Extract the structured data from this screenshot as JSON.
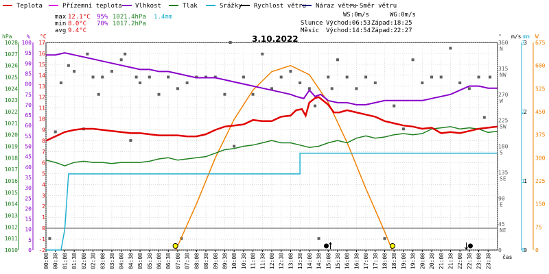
{
  "legend": [
    {
      "label": "Teplota",
      "color": "#e00000"
    },
    {
      "label": "Přízemní teplota",
      "color": "#e000e0"
    },
    {
      "label": "Vlhkost",
      "color": "#8800c8"
    },
    {
      "label": "Tlak",
      "color": "#208020"
    },
    {
      "label": "Srážky",
      "color": "#20b0d0"
    },
    {
      "label": "Rychlost větru",
      "color": "#000000"
    },
    {
      "label": "Náraz větru",
      "color": "#000080"
    },
    {
      "label": "Směr větru",
      "color": "#808080"
    }
  ],
  "stats": {
    "max": {
      "label": "max",
      "temp": "12.1°C",
      "hum": "95%",
      "press": "1021.4hPa",
      "rain": "1.4mm"
    },
    "min": {
      "label": "min",
      "temp": "8.0°C",
      "hum": "70%",
      "press": "1017.2hPa"
    },
    "avg": {
      "label": "avg",
      "temp": "9.4°C"
    }
  },
  "wind": {
    "ws": "WS:0m/s",
    "wg": "WG:0m/s"
  },
  "sun": {
    "label": "Slunce",
    "rise": "Východ:06:53",
    "set": "Západ:18:25"
  },
  "moon": {
    "label": "Měsíc",
    "rise": "Východ:14:54",
    "set": "Západ:22:27"
  },
  "date": "3.10.2022",
  "time_label": "čas",
  "units": {
    "hpa": "hPa",
    "pct": "%",
    "degc": "°C",
    "deg": "°",
    "ms": "m/s",
    "mm": "mm",
    "w": "W"
  },
  "colors": {
    "temp": "#e00000",
    "hum": "#8800c8",
    "press": "#208020",
    "rain": "#20b0d0",
    "dir": "#606060",
    "sun": "#f08000",
    "grid": "#c8c8c8",
    "zero": "#808080"
  },
  "axes": {
    "hpa": [
      "1010",
      "1011",
      "1012",
      "1013",
      "1014",
      "1015",
      "1016",
      "1017",
      "1018",
      "1019",
      "1020",
      "1021",
      "1022",
      "1023",
      "1024",
      "1025",
      "1026",
      "1027",
      "1028"
    ],
    "pct": [
      "0",
      "5",
      "10",
      "15",
      "20",
      "25",
      "30",
      "35",
      "40",
      "45",
      "50",
      "55",
      "60",
      "65",
      "70",
      "75",
      "80",
      "85",
      "90",
      "95",
      "100"
    ],
    "degc": [
      "-2",
      "-1",
      "0",
      "1",
      "2",
      "3",
      "4",
      "5",
      "6",
      "7",
      "8",
      "9",
      "10",
      "11",
      "12",
      "13",
      "14",
      "15",
      "16",
      "17"
    ],
    "dir": [
      {
        "deg": "360",
        "card": "N"
      },
      {
        "deg": "315",
        "card": "NW"
      },
      {
        "deg": "270",
        "card": "W"
      },
      {
        "deg": "225",
        "card": "SW"
      },
      {
        "deg": "180",
        "card": "S"
      },
      {
        "deg": "135",
        "card": "SE"
      },
      {
        "deg": "90",
        "card": "E"
      },
      {
        "deg": "45",
        "card": "NE"
      },
      {
        "deg": "0",
        "card": ""
      }
    ],
    "ms": [
      {
        "v": "0"
      },
      {
        "v": "1"
      },
      {
        "v": "2"
      },
      {
        "v": "3"
      }
    ],
    "mm": [
      {
        "v": "0"
      },
      {
        "v": "1"
      },
      {
        "v": "2"
      },
      {
        "v": "3"
      }
    ],
    "w": [
      "0",
      "75",
      "150",
      "225",
      "300",
      "375",
      "450",
      "525",
      "600",
      "675"
    ],
    "time": [
      "00:00",
      "00:30",
      "01:00",
      "01:30",
      "02:00",
      "02:30",
      "03:00",
      "03:30",
      "04:00",
      "04:30",
      "05:00",
      "05:30",
      "06:00",
      "06:30",
      "07:00",
      "07:30",
      "08:00",
      "08:30",
      "09:00",
      "09:30",
      "10:00",
      "10:30",
      "11:00",
      "11:30",
      "12:00",
      "12:30",
      "13:00",
      "13:30",
      "14:00",
      "14:30",
      "15:00",
      "15:30",
      "16:00",
      "16:30",
      "17:00",
      "17:30",
      "18:00",
      "18:30",
      "19:00",
      "19:30",
      "20:00",
      "20:30",
      "21:00",
      "21:30",
      "22:00",
      "22:30",
      "23:00",
      "23:30"
    ]
  },
  "chart_data": {
    "type": "line",
    "x_unit": "hours",
    "ranges": {
      "temp": [
        -2,
        17
      ],
      "hum": [
        0,
        100
      ],
      "press": [
        1010,
        1028
      ],
      "rain": [
        0,
        3
      ],
      "sun": [
        0,
        675
      ],
      "dir": [
        0,
        360
      ]
    },
    "series": [
      {
        "name": "Teplota",
        "unit": "°C",
        "points": [
          [
            0,
            8.0
          ],
          [
            0.5,
            8.4
          ],
          [
            1,
            8.8
          ],
          [
            1.5,
            9.0
          ],
          [
            2,
            9.1
          ],
          [
            2.5,
            9.1
          ],
          [
            3,
            9.0
          ],
          [
            3.5,
            8.9
          ],
          [
            4,
            8.8
          ],
          [
            4.5,
            8.7
          ],
          [
            5,
            8.7
          ],
          [
            5.5,
            8.6
          ],
          [
            6,
            8.5
          ],
          [
            6.5,
            8.5
          ],
          [
            7,
            8.5
          ],
          [
            7.5,
            8.4
          ],
          [
            8,
            8.4
          ],
          [
            8.5,
            8.6
          ],
          [
            9,
            9.0
          ],
          [
            9.5,
            9.3
          ],
          [
            10,
            9.4
          ],
          [
            10.5,
            9.5
          ],
          [
            11,
            9.9
          ],
          [
            11.5,
            9.8
          ],
          [
            12,
            9.8
          ],
          [
            12.5,
            10.2
          ],
          [
            13,
            10.3
          ],
          [
            13.3,
            10.8
          ],
          [
            13.6,
            10.9
          ],
          [
            13.8,
            10.3
          ],
          [
            14,
            11.5
          ],
          [
            14.3,
            11.9
          ],
          [
            14.5,
            12.0
          ],
          [
            15,
            11.3
          ],
          [
            15.3,
            10.6
          ],
          [
            15.6,
            10.6
          ],
          [
            16,
            10.8
          ],
          [
            16.5,
            10.6
          ],
          [
            17,
            10.4
          ],
          [
            17.5,
            10.2
          ],
          [
            18,
            9.8
          ],
          [
            18.5,
            9.6
          ],
          [
            19,
            9.4
          ],
          [
            19.5,
            9.3
          ],
          [
            20,
            9.1
          ],
          [
            20.5,
            9.2
          ],
          [
            21,
            8.7
          ],
          [
            21.5,
            8.8
          ],
          [
            22,
            8.7
          ],
          [
            22.5,
            8.9
          ],
          [
            23,
            9.1
          ],
          [
            23.5,
            9.2
          ],
          [
            24,
            9.3
          ]
        ]
      },
      {
        "name": "Vlhkost",
        "unit": "%",
        "points": [
          [
            0,
            94
          ],
          [
            0.5,
            94
          ],
          [
            1,
            95
          ],
          [
            1.5,
            94
          ],
          [
            2,
            93
          ],
          [
            2.5,
            92
          ],
          [
            3,
            91
          ],
          [
            3.5,
            90
          ],
          [
            4,
            89
          ],
          [
            4.5,
            88
          ],
          [
            5,
            87
          ],
          [
            5.5,
            87
          ],
          [
            6,
            86
          ],
          [
            6.5,
            86
          ],
          [
            7,
            85
          ],
          [
            7.5,
            84
          ],
          [
            8,
            83
          ],
          [
            8.5,
            83
          ],
          [
            9,
            83
          ],
          [
            9.5,
            82
          ],
          [
            10,
            81
          ],
          [
            10.5,
            80
          ],
          [
            11,
            79
          ],
          [
            11.5,
            78
          ],
          [
            12,
            77
          ],
          [
            12.5,
            76
          ],
          [
            13,
            75
          ],
          [
            13.3,
            74
          ],
          [
            13.7,
            73
          ],
          [
            14,
            77
          ],
          [
            14.3,
            74
          ],
          [
            14.6,
            75
          ],
          [
            15,
            72
          ],
          [
            15.5,
            71
          ],
          [
            16,
            71
          ],
          [
            16.5,
            70
          ],
          [
            17,
            70
          ],
          [
            17.5,
            71
          ],
          [
            18,
            72
          ],
          [
            18.5,
            72
          ],
          [
            19,
            72
          ],
          [
            19.5,
            72
          ],
          [
            20,
            72
          ],
          [
            20.5,
            73
          ],
          [
            21,
            74
          ],
          [
            21.5,
            75
          ],
          [
            22,
            77
          ],
          [
            22.5,
            79
          ],
          [
            23,
            79
          ],
          [
            23.5,
            78
          ],
          [
            24,
            78
          ]
        ]
      },
      {
        "name": "Tlak",
        "unit": "hPa",
        "points": [
          [
            0,
            1017.8
          ],
          [
            0.5,
            1017.6
          ],
          [
            1,
            1017.3
          ],
          [
            1.5,
            1017.6
          ],
          [
            2,
            1017.7
          ],
          [
            2.5,
            1017.6
          ],
          [
            3,
            1017.6
          ],
          [
            3.5,
            1017.5
          ],
          [
            4,
            1017.6
          ],
          [
            4.5,
            1017.6
          ],
          [
            5,
            1017.6
          ],
          [
            5.5,
            1017.7
          ],
          [
            6,
            1017.9
          ],
          [
            6.5,
            1018.0
          ],
          [
            7,
            1017.8
          ],
          [
            7.5,
            1017.9
          ],
          [
            8,
            1018.0
          ],
          [
            8.5,
            1018.1
          ],
          [
            9,
            1018.4
          ],
          [
            9.5,
            1018.7
          ],
          [
            10,
            1018.8
          ],
          [
            10.5,
            1019.0
          ],
          [
            11,
            1019.1
          ],
          [
            11.5,
            1019.3
          ],
          [
            12,
            1019.5
          ],
          [
            12.5,
            1019.3
          ],
          [
            13,
            1019.3
          ],
          [
            13.5,
            1019.1
          ],
          [
            14,
            1018.9
          ],
          [
            14.5,
            1019.0
          ],
          [
            15,
            1019.3
          ],
          [
            15.5,
            1019.5
          ],
          [
            16,
            1019.3
          ],
          [
            16.5,
            1019.7
          ],
          [
            17,
            1019.9
          ],
          [
            17.5,
            1019.7
          ],
          [
            18,
            1019.8
          ],
          [
            18.5,
            1020.0
          ],
          [
            19,
            1020.1
          ],
          [
            19.5,
            1020.0
          ],
          [
            20,
            1020.1
          ],
          [
            20.5,
            1020.5
          ],
          [
            21,
            1020.6
          ],
          [
            21.5,
            1020.7
          ],
          [
            22,
            1020.5
          ],
          [
            22.5,
            1020.6
          ],
          [
            23,
            1020.5
          ],
          [
            23.5,
            1020.2
          ],
          [
            24,
            1020.3
          ]
        ]
      },
      {
        "name": "Srážky",
        "unit": "mm",
        "points": [
          [
            0,
            0
          ],
          [
            0.8,
            0
          ],
          [
            1.0,
            0.3
          ],
          [
            1.2,
            1.1
          ],
          [
            13.5,
            1.1
          ],
          [
            13.5,
            1.4
          ],
          [
            24,
            1.4
          ]
        ]
      },
      {
        "name": "Slunce",
        "unit": "W",
        "points": [
          [
            6.9,
            0
          ],
          [
            8,
            150
          ],
          [
            9,
            300
          ],
          [
            10,
            425
          ],
          [
            11,
            520
          ],
          [
            12,
            580
          ],
          [
            13,
            600
          ],
          [
            14,
            570
          ],
          [
            15,
            480
          ],
          [
            16,
            350
          ],
          [
            17,
            200
          ],
          [
            18,
            60
          ],
          [
            18.4,
            0
          ]
        ]
      },
      {
        "name": "Směr větru",
        "unit": "°",
        "points": [
          [
            0.2,
            20
          ],
          [
            0.5,
            205
          ],
          [
            0.8,
            290
          ],
          [
            1.2,
            320
          ],
          [
            1.5,
            310
          ],
          [
            2,
            210
          ],
          [
            2.2,
            340
          ],
          [
            2.5,
            300
          ],
          [
            2.8,
            270
          ],
          [
            3,
            300
          ],
          [
            3.5,
            310
          ],
          [
            4,
            330
          ],
          [
            4.2,
            340
          ],
          [
            4.5,
            190
          ],
          [
            4.8,
            300
          ],
          [
            5,
            290
          ],
          [
            5.5,
            300
          ],
          [
            6,
            270
          ],
          [
            6.5,
            300
          ],
          [
            7,
            280
          ],
          [
            7.2,
            20
          ],
          [
            7.5,
            290
          ],
          [
            8,
            300
          ],
          [
            8.5,
            300
          ],
          [
            9,
            300
          ],
          [
            9.5,
            270
          ],
          [
            9.8,
            360
          ],
          [
            10,
            180
          ],
          [
            10.5,
            300
          ],
          [
            11,
            270
          ],
          [
            11.5,
            340
          ],
          [
            12,
            280
          ],
          [
            12.5,
            300
          ],
          [
            13,
            310
          ],
          [
            13.5,
            290
          ],
          [
            14,
            280
          ],
          [
            14.3,
            250
          ],
          [
            14.5,
            20
          ],
          [
            15,
            300
          ],
          [
            15.2,
            280
          ],
          [
            15.5,
            330
          ],
          [
            16,
            300
          ],
          [
            16.5,
            280
          ],
          [
            17,
            300
          ],
          [
            17.5,
            290
          ],
          [
            18,
            20
          ],
          [
            18.5,
            250
          ],
          [
            19,
            210
          ],
          [
            19.5,
            330
          ],
          [
            20,
            290
          ],
          [
            20.5,
            300
          ],
          [
            21,
            300
          ],
          [
            21.5,
            350
          ],
          [
            22,
            290
          ],
          [
            22.5,
            280
          ],
          [
            23,
            300
          ],
          [
            23.3,
            230
          ],
          [
            23.6,
            300
          ]
        ]
      }
    ],
    "markers": {
      "sunrise": 6.88,
      "sunset": 18.42,
      "moonrise": 14.9,
      "moonset": 22.45
    }
  }
}
